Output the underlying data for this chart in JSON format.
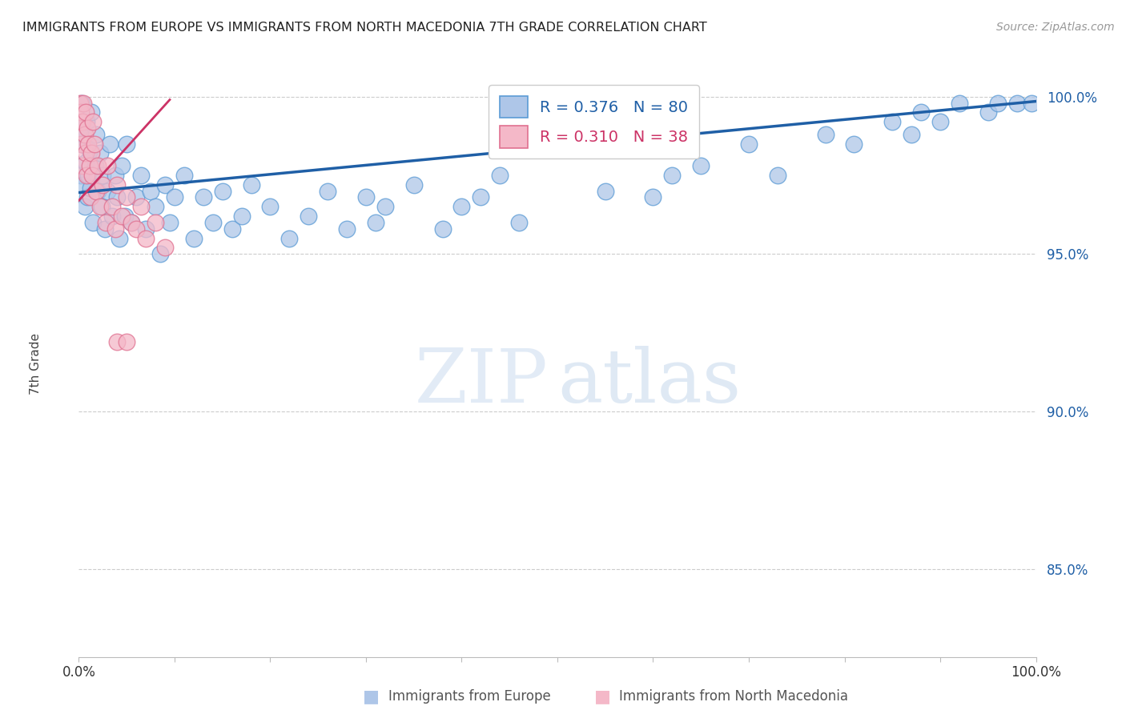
{
  "title": "IMMIGRANTS FROM EUROPE VS IMMIGRANTS FROM NORTH MACEDONIA 7TH GRADE CORRELATION CHART",
  "source": "Source: ZipAtlas.com",
  "xlabel_bottom": "Immigrants from Europe",
  "xlabel_bottom2": "Immigrants from North Macedonia",
  "ylabel": "7th Grade",
  "xlim": [
    0.0,
    1.0
  ],
  "ylim": [
    0.822,
    1.008
  ],
  "yticks": [
    0.85,
    0.9,
    0.95,
    1.0
  ],
  "ytick_labels": [
    "85.0%",
    "90.0%",
    "95.0%",
    "100.0%"
  ],
  "xtick_labels": [
    "0.0%",
    "100.0%"
  ],
  "legend_blue_label": "R = 0.376   N = 80",
  "legend_pink_label": "R = 0.310   N = 38",
  "blue_color": "#aec6e8",
  "blue_edge_color": "#5b9bd5",
  "blue_line_color": "#1f5fa6",
  "pink_color": "#f4b8c8",
  "pink_edge_color": "#e07090",
  "pink_line_color": "#cc3366",
  "watermark_zip": "ZIP",
  "watermark_atlas": "atlas",
  "blue_scatter_x": [
    0.001,
    0.002,
    0.003,
    0.003,
    0.004,
    0.005,
    0.006,
    0.007,
    0.008,
    0.009,
    0.01,
    0.011,
    0.012,
    0.013,
    0.015,
    0.017,
    0.018,
    0.02,
    0.022,
    0.024,
    0.025,
    0.027,
    0.03,
    0.032,
    0.035,
    0.038,
    0.04,
    0.042,
    0.045,
    0.048,
    0.05,
    0.055,
    0.06,
    0.065,
    0.07,
    0.075,
    0.08,
    0.085,
    0.09,
    0.095,
    0.1,
    0.11,
    0.12,
    0.13,
    0.14,
    0.15,
    0.16,
    0.17,
    0.18,
    0.2,
    0.22,
    0.24,
    0.26,
    0.28,
    0.3,
    0.31,
    0.32,
    0.35,
    0.38,
    0.4,
    0.42,
    0.44,
    0.46,
    0.55,
    0.6,
    0.62,
    0.65,
    0.7,
    0.73,
    0.78,
    0.81,
    0.85,
    0.87,
    0.88,
    0.9,
    0.92,
    0.95,
    0.96,
    0.98,
    0.995
  ],
  "blue_scatter_y": [
    0.99,
    0.975,
    0.985,
    0.998,
    0.972,
    0.988,
    0.965,
    0.979,
    0.992,
    0.968,
    0.975,
    0.983,
    0.971,
    0.995,
    0.96,
    0.978,
    0.988,
    0.97,
    0.982,
    0.965,
    0.975,
    0.958,
    0.97,
    0.985,
    0.962,
    0.975,
    0.968,
    0.955,
    0.978,
    0.962,
    0.985,
    0.96,
    0.968,
    0.975,
    0.958,
    0.97,
    0.965,
    0.95,
    0.972,
    0.96,
    0.968,
    0.975,
    0.955,
    0.968,
    0.96,
    0.97,
    0.958,
    0.962,
    0.972,
    0.965,
    0.955,
    0.962,
    0.97,
    0.958,
    0.968,
    0.96,
    0.965,
    0.972,
    0.958,
    0.965,
    0.968,
    0.975,
    0.96,
    0.97,
    0.968,
    0.975,
    0.978,
    0.985,
    0.975,
    0.988,
    0.985,
    0.992,
    0.988,
    0.995,
    0.992,
    0.998,
    0.995,
    0.998,
    0.998,
    0.998
  ],
  "pink_scatter_x": [
    0.001,
    0.002,
    0.002,
    0.003,
    0.004,
    0.004,
    0.005,
    0.006,
    0.007,
    0.007,
    0.008,
    0.009,
    0.01,
    0.011,
    0.012,
    0.013,
    0.014,
    0.015,
    0.016,
    0.018,
    0.02,
    0.022,
    0.025,
    0.028,
    0.03,
    0.035,
    0.038,
    0.04,
    0.045,
    0.05,
    0.055,
    0.06,
    0.065,
    0.07,
    0.08,
    0.09,
    0.04,
    0.05
  ],
  "pink_scatter_y": [
    0.998,
    0.992,
    0.995,
    0.985,
    0.992,
    0.978,
    0.998,
    0.988,
    0.982,
    0.995,
    0.975,
    0.99,
    0.985,
    0.978,
    0.968,
    0.982,
    0.975,
    0.992,
    0.985,
    0.97,
    0.978,
    0.965,
    0.972,
    0.96,
    0.978,
    0.965,
    0.958,
    0.972,
    0.962,
    0.968,
    0.96,
    0.958,
    0.965,
    0.955,
    0.96,
    0.952,
    0.922,
    0.922
  ],
  "blue_trendline_x": [
    0.0,
    1.0
  ],
  "blue_trendline_y": [
    0.9695,
    0.9985
  ],
  "pink_trendline_x": [
    0.0,
    0.095
  ],
  "pink_trendline_y": [
    0.967,
    0.999
  ]
}
